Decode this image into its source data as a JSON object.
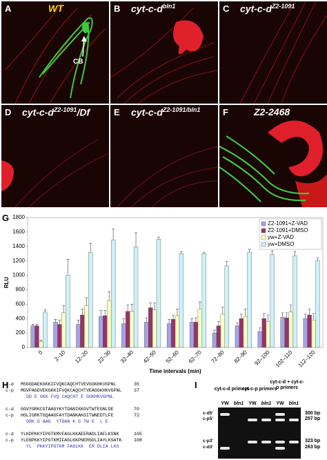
{
  "panels": [
    {
      "label": "A",
      "title": "WT",
      "annotation": "CB"
    },
    {
      "label": "B",
      "title": "cyt-c-d",
      "superscript": "bln1"
    },
    {
      "label": "C",
      "title": "cyt-c-d",
      "superscript": "Z2-1091"
    },
    {
      "label": "D",
      "title": "cyt-c-d",
      "superscript": "Z2-1091",
      "suffix": "/Df"
    },
    {
      "label": "E",
      "title": "cyt-c-d",
      "superscript": "Z2-1091/bln1"
    },
    {
      "label": "F",
      "title": "Z2-2468"
    }
  ],
  "chart_panel_label": "G",
  "chart_data": {
    "type": "bar",
    "ylabel": "RLU",
    "xlabel": "Time intervals (min)",
    "legend": "upper right",
    "categories": [
      "0",
      "2–10",
      "12–20",
      "22–30",
      "32–40",
      "42–50",
      "52–60",
      "62–70",
      "72–80",
      "82–90",
      "92–100",
      "102–110",
      "112–120"
    ],
    "series": [
      {
        "name": "Z2-1091+Z-VAD",
        "color": "#a4a4e4",
        "values": [
          300,
          350,
          320,
          430,
          330,
          350,
          330,
          350,
          200,
          300,
          220,
          420,
          400
        ],
        "errors": [
          20,
          40,
          60,
          80,
          70,
          60,
          60,
          50,
          40,
          40,
          50,
          60,
          60
        ]
      },
      {
        "name": "Z2-1091+DMSO",
        "color": "#993366",
        "values": [
          300,
          320,
          450,
          440,
          500,
          550,
          390,
          350,
          300,
          400,
          400,
          410,
          450
        ],
        "errors": [
          20,
          60,
          80,
          70,
          90,
          70,
          60,
          60,
          60,
          60,
          70,
          70,
          80
        ]
      },
      {
        "name": "yw+Z-VAD",
        "color": "#ffffc4",
        "values": [
          80,
          480,
          580,
          650,
          500,
          520,
          440,
          530,
          460,
          430,
          360,
          490,
          380
        ],
        "errors": [
          20,
          100,
          110,
          120,
          100,
          100,
          90,
          100,
          100,
          100,
          90,
          100,
          90
        ]
      },
      {
        "name": "yw+DMSO",
        "color": "#cdf2f8",
        "values": [
          490,
          1000,
          1320,
          1490,
          1390,
          1500,
          1300,
          1300,
          1130,
          1320,
          1290,
          1270,
          1200
        ],
        "errors": [
          30,
          220,
          120,
          150,
          200,
          30,
          30,
          20,
          60,
          40,
          50,
          60,
          40
        ]
      }
    ],
    "ylim": [
      0,
      1800
    ],
    "yticks": [
      0,
      200,
      400,
      600,
      800,
      1000,
      1200,
      1400,
      1600,
      1800
    ],
    "grid": false
  },
  "alignment": {
    "label": "H",
    "blocks": [
      {
        "rows": [
          {
            "name": "c-d",
            "seq": "MSGGDAEKGKKIFVQKCAQCHTVEVGGKHKVGPNL",
            "end": "35"
          },
          {
            "name": "c-p",
            "seq": "MGVPAGDVEKGKKIFVQKCAQCHTVEAGGKHKVGPNL",
            "end": "37"
          }
        ],
        "consensus": "GD E GKK FVQ CAQCHT E GGKHKVGPNL"
      },
      {
        "rows": [
          {
            "name": "c-d",
            "seq": "GGVYGRKCGTAAGYKYTDANIKKGVTWTEGNLDE",
            "end": "70"
          },
          {
            "name": "c-p",
            "seq": "HGLIGRKTGQAAGFAYTDANKAKGITWNEDTLFE",
            "end": "72"
          }
        ],
        "consensus": "GRK G AAG  YTDAN K G TW E  L E"
      },
      {
        "rows": [
          {
            "name": "c-d",
            "seq": "YLKDPKKYIPGTKMVFAGLKKAEERADLIAFLKSNK",
            "end": "105"
          },
          {
            "name": "c-p",
            "seq": "YLENPKKYIPGTKMIFAGLKKPNERGDLIAYLKSATK",
            "end": "108"
          }
        ],
        "consensus": "YL  PKKYIPGTKM FAGLKK  ER DLIA LKS"
      }
    ]
  },
  "gel": {
    "label": "I",
    "groups": [
      "cyt-c-d primers",
      "cyt-c-p primers",
      "cyt-c-d + cyt-c-p primers"
    ],
    "lanes": [
      "YW",
      "bln1",
      "YW",
      "bln1",
      "YW",
      "bln1"
    ],
    "left_labels": [
      "c-d5'",
      "c-p5'",
      "c-p3'",
      "c-d3'"
    ],
    "right_labels": [
      "300 bp",
      "257 bp",
      "323 bp",
      "263 bp"
    ]
  }
}
